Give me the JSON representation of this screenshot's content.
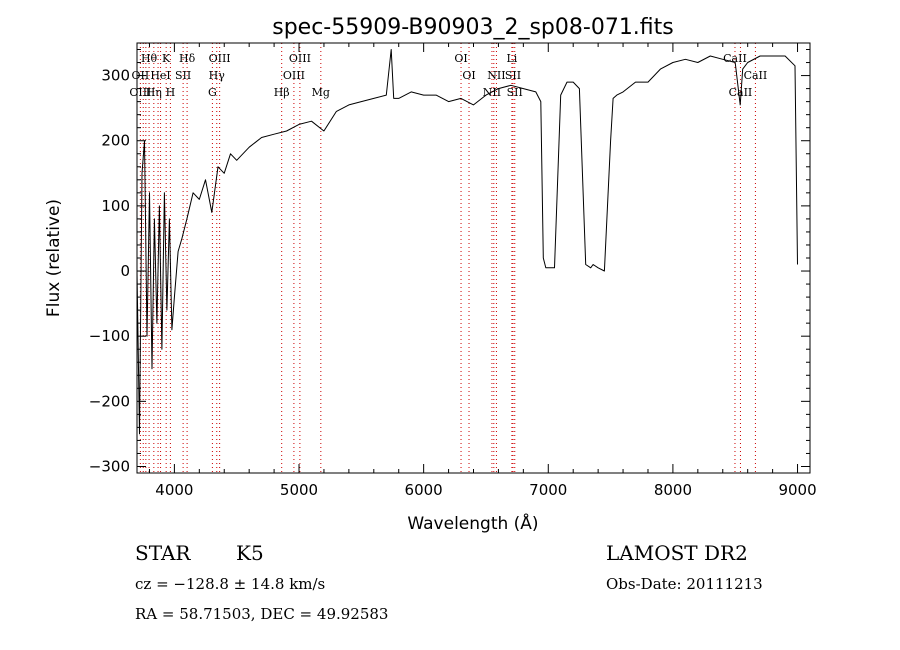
{
  "chart_data": {
    "type": "line",
    "title": "spec-55909-B90903_2_sp08-071.fits",
    "xlabel": "Wavelength (Å)",
    "ylabel": "Flux (relative)",
    "xlim": [
      3700,
      9100
    ],
    "ylim": [
      -310,
      350
    ],
    "xticks": [
      4000,
      5000,
      6000,
      7000,
      8000,
      9000
    ],
    "yticks": [
      -300,
      -200,
      -100,
      0,
      100,
      200,
      300
    ],
    "grid": false,
    "series": [
      {
        "color": "#000000",
        "x": [
          3700,
          3720,
          3740,
          3760,
          3780,
          3800,
          3820,
          3840,
          3860,
          3880,
          3900,
          3920,
          3940,
          3960,
          3980,
          4000,
          4030,
          4060,
          4100,
          4150,
          4200,
          4250,
          4300,
          4350,
          4400,
          4450,
          4500,
          4600,
          4700,
          4800,
          4900,
          5000,
          5100,
          5200,
          5300,
          5400,
          5500,
          5600,
          5700,
          5740,
          5760,
          5800,
          5900,
          6000,
          6100,
          6200,
          6300,
          6400,
          6500,
          6600,
          6700,
          6800,
          6900,
          6940,
          6960,
          6980,
          7000,
          7050,
          7100,
          7150,
          7200,
          7250,
          7300,
          7340,
          7360,
          7400,
          7450,
          7500,
          7520,
          7550,
          7600,
          7700,
          7800,
          7900,
          8000,
          8100,
          8200,
          8300,
          8400,
          8500,
          8540,
          8560,
          8600,
          8700,
          8800,
          8900,
          8980,
          9000
        ],
        "y": [
          0,
          -250,
          150,
          200,
          -100,
          120,
          -150,
          80,
          -80,
          100,
          -120,
          120,
          -60,
          80,
          -90,
          -40,
          30,
          50,
          80,
          120,
          110,
          140,
          90,
          160,
          150,
          180,
          170,
          190,
          205,
          210,
          215,
          225,
          230,
          215,
          245,
          255,
          260,
          265,
          270,
          340,
          265,
          265,
          275,
          270,
          270,
          260,
          265,
          255,
          270,
          280,
          285,
          280,
          275,
          260,
          20,
          5,
          5,
          5,
          270,
          290,
          290,
          280,
          10,
          5,
          10,
          5,
          0,
          200,
          265,
          270,
          275,
          290,
          290,
          310,
          320,
          325,
          320,
          330,
          325,
          320,
          255,
          310,
          320,
          330,
          330,
          330,
          315,
          10
        ]
      }
    ],
    "line_labels": [
      {
        "text": "Hθ",
        "x": 3797,
        "row": 0,
        "color": "#000000"
      },
      {
        "text": "K",
        "x": 3934,
        "row": 0,
        "color": "#000000"
      },
      {
        "text": "Hδ",
        "x": 4102,
        "row": 0,
        "color": "#000000"
      },
      {
        "text": "OIII",
        "x": 4363,
        "row": 0,
        "color": "#000000"
      },
      {
        "text": "OIII",
        "x": 5007,
        "row": 0,
        "color": "#000000"
      },
      {
        "text": "OI",
        "x": 6300,
        "row": 0,
        "color": "#000000"
      },
      {
        "text": "Li",
        "x": 6708,
        "row": 0,
        "color": "#000000"
      },
      {
        "text": "CaII",
        "x": 8498,
        "row": 0,
        "color": "#000000"
      },
      {
        "text": "OII",
        "x": 3727,
        "row": 1,
        "color": "#000000"
      },
      {
        "text": "HeI",
        "x": 3889,
        "row": 1,
        "color": "#000000"
      },
      {
        "text": "SII",
        "x": 4070,
        "row": 1,
        "color": "#000000"
      },
      {
        "text": "Hγ",
        "x": 4340,
        "row": 1,
        "color": "#000000"
      },
      {
        "text": "OIII",
        "x": 4959,
        "row": 1,
        "color": "#000000"
      },
      {
        "text": "OI",
        "x": 6364,
        "row": 1,
        "color": "#000000"
      },
      {
        "text": "NII",
        "x": 6584,
        "row": 1,
        "color": "#000000"
      },
      {
        "text": "SII",
        "x": 6717,
        "row": 1,
        "color": "#000000"
      },
      {
        "text": "CaII",
        "x": 8662,
        "row": 1,
        "color": "#000000"
      },
      {
        "text": "OIII",
        "x": 3727,
        "row": 2,
        "color": "#000000"
      },
      {
        "text": "Hη",
        "x": 3835,
        "row": 2,
        "color": "#000000"
      },
      {
        "text": "H",
        "x": 3968,
        "row": 2,
        "color": "#000000"
      },
      {
        "text": "G",
        "x": 4305,
        "row": 2,
        "color": "#000000"
      },
      {
        "text": "Hβ",
        "x": 4861,
        "row": 2,
        "color": "#000000"
      },
      {
        "text": "Mg",
        "x": 5175,
        "row": 2,
        "color": "#000000"
      },
      {
        "text": "NII",
        "x": 6548,
        "row": 2,
        "color": "#000000"
      },
      {
        "text": "SII",
        "x": 6731,
        "row": 2,
        "color": "#000000"
      },
      {
        "text": "CaII",
        "x": 8542,
        "row": 2,
        "color": "#000000"
      }
    ],
    "marker_lines": {
      "color": "#cc0000",
      "x": [
        3727,
        3750,
        3771,
        3797,
        3835,
        3869,
        3889,
        3934,
        3968,
        4070,
        4102,
        4305,
        4340,
        4363,
        4861,
        4959,
        5007,
        5175,
        6300,
        6364,
        6548,
        6563,
        6584,
        6708,
        6717,
        6731,
        8498,
        8542,
        8662
      ]
    }
  },
  "info": {
    "object_class": "STAR",
    "subclass": "K5",
    "survey": "LAMOST DR2",
    "cz": "cz = −128.8 ± 14.8 km/s",
    "obs_date": "Obs-Date: 20111213",
    "coords": "RA =  58.71503, DEC =  49.92583"
  }
}
